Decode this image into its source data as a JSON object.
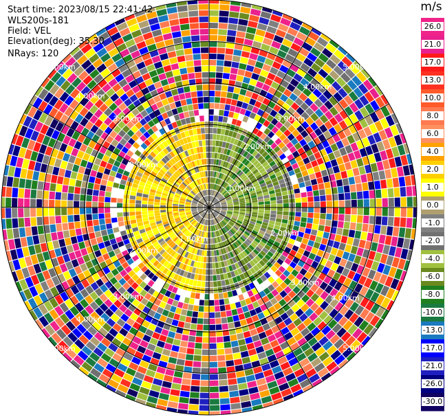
{
  "info": {
    "start_time": "Start time: 2023/08/15 22:41:42",
    "site": "WLS200s-181",
    "field": "Field: VEL",
    "elevation": "Elevation(deg): 35.30",
    "nrays": "NRays: 120"
  },
  "colorbar": {
    "unit": "m/s",
    "ticks": [
      "26.0",
      "21.0",
      "17.0",
      "13.0",
      "10.0",
      "8.0",
      "6.0",
      "4.0",
      "2.0",
      "1.0",
      "0.0",
      "-1.0",
      "-2.0",
      "-4.0",
      "-6.0",
      "-8.0",
      "-10.0",
      "-13.0",
      "-17.0",
      "-21.0",
      "-26.0",
      "-30.0"
    ],
    "colors": [
      "#f0238a",
      "#e8218e",
      "#ff1a1a",
      "#ff3020",
      "#ff5a2a",
      "#ff7a50",
      "#ff9060",
      "#ffa200",
      "#ffd000",
      "#ffff00",
      "#b0a070",
      "#808080",
      "#707070",
      "#a0c040",
      "#6a8a20",
      "#208020",
      "#1a7a40",
      "#1a7ac0",
      "#0000ff",
      "#2020c0",
      "#000080",
      "#100060"
    ]
  },
  "chart_data": {
    "type": "polar_ppi",
    "field": "VEL",
    "nrays": 120,
    "range_ring_labels": [
      "1.00km",
      "2.00km",
      "3.00km",
      "4.00km",
      "5.00km"
    ],
    "ring_label_text": [
      "1.00km",
      "1.00km",
      "2.00km",
      "2.00km",
      "2.00km",
      "2.00km",
      "3.00km",
      "3.00km",
      "3.00km",
      "3.00km",
      "4.00km",
      "4.00km",
      "4.00km",
      "4.00km",
      "5.00km",
      "5.00km",
      "5.00km",
      "5.00km"
    ],
    "inner_region": {
      "west": "yellow (approx 2 to 4 m/s)",
      "east": "green (approx -2 to -6 m/s)",
      "center": "grey (approx 0 m/s)"
    },
    "outer_region": "noisy mixed velocities across full range"
  }
}
